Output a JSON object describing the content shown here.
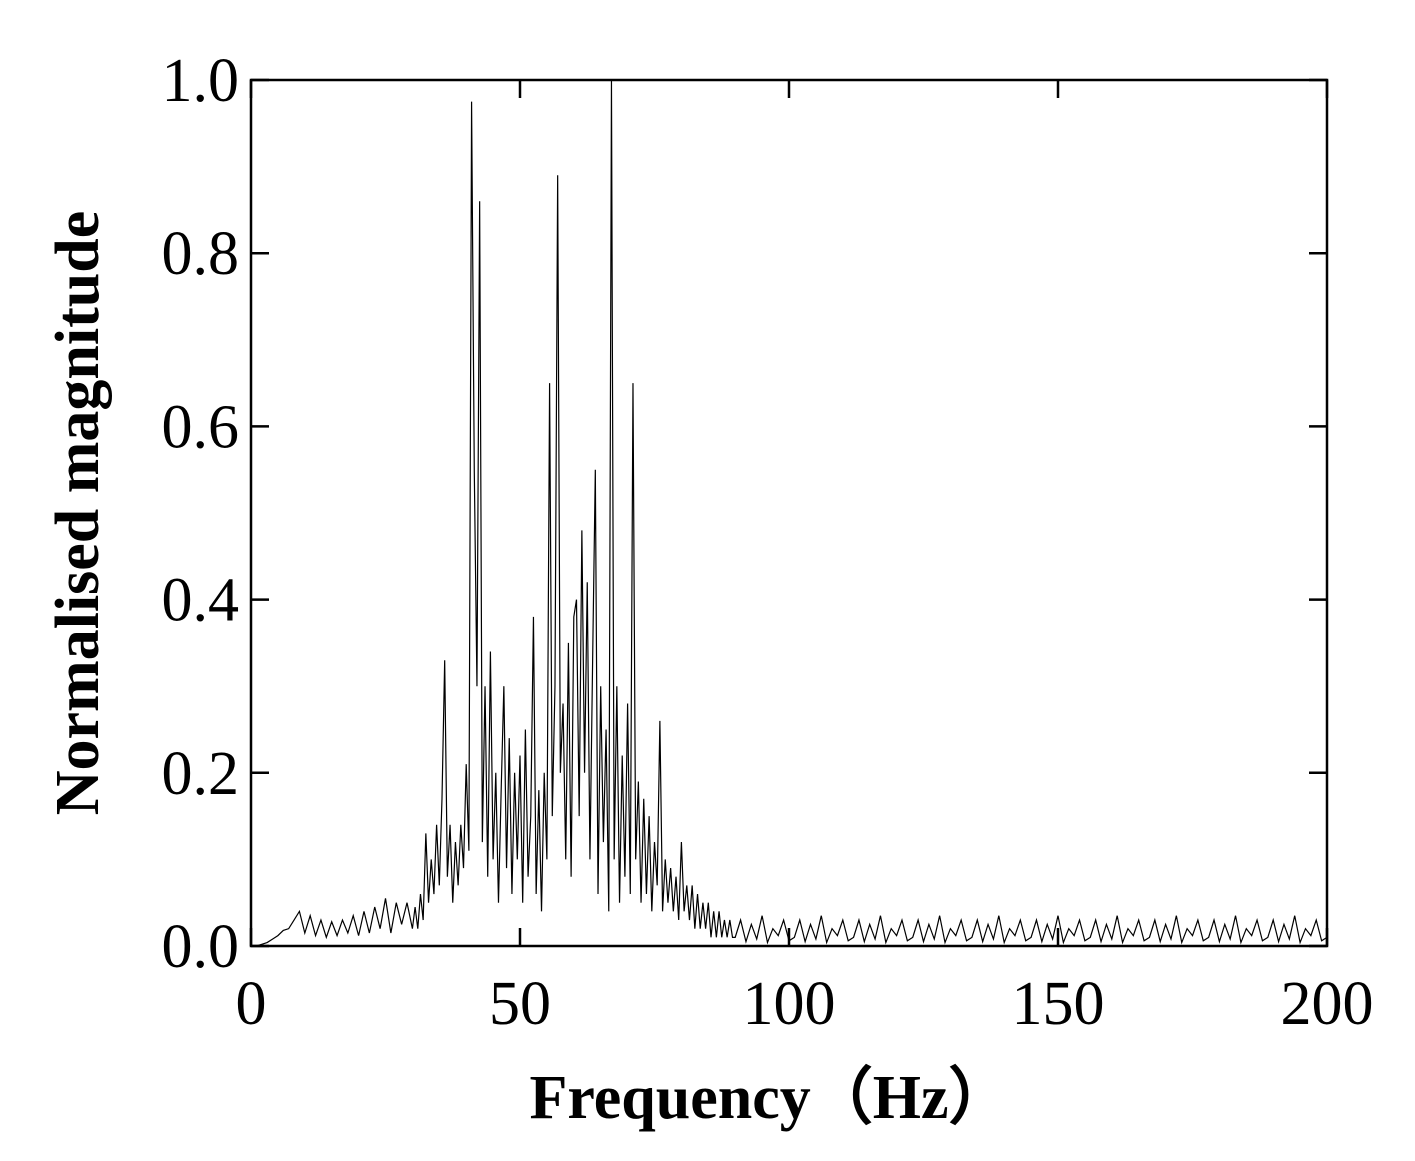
{
  "chart_data": {
    "type": "line",
    "x_label": "Frequency（Hz）",
    "y_label": "Normalised magnitude",
    "xlim": [
      0,
      200
    ],
    "xticks": [
      0,
      50,
      100,
      150,
      200
    ],
    "ylim": [
      0,
      1
    ],
    "yticks": [
      {
        "value": 0,
        "label": "0.0"
      },
      {
        "value": 0.2,
        "label": "0.2"
      },
      {
        "value": 0.4,
        "label": "0.4"
      },
      {
        "value": 0.6,
        "label": "0.6"
      },
      {
        "value": 0.8,
        "label": "0.8"
      },
      {
        "value": 1,
        "label": "1.0"
      }
    ],
    "grid": false,
    "series": [
      {
        "color": "#000000",
        "x": [
          0,
          1,
          2,
          3,
          4,
          5,
          6,
          7,
          8,
          9,
          10,
          11,
          12,
          13,
          14,
          15,
          16,
          17,
          18,
          19,
          20,
          21,
          22,
          23,
          24,
          25,
          26,
          27,
          28,
          29,
          30,
          30.5,
          31,
          31.5,
          32,
          32.5,
          33,
          33.5,
          34,
          34.5,
          35,
          35.5,
          36,
          36.5,
          37,
          37.5,
          38,
          38.5,
          39,
          39.5,
          40,
          40.5,
          41,
          41.5,
          42,
          42.5,
          43,
          43.5,
          44,
          44.5,
          45,
          45.5,
          46,
          46.5,
          47,
          47.5,
          48,
          48.5,
          49,
          49.5,
          50,
          50.5,
          51,
          51.5,
          52,
          52.5,
          53,
          53.5,
          54,
          54.5,
          55,
          55.5,
          56,
          56.5,
          57,
          57.5,
          58,
          58.5,
          59,
          59.5,
          60,
          60.5,
          61,
          61.5,
          62,
          62.5,
          63,
          63.5,
          64,
          64.5,
          65,
          65.5,
          66,
          66.5,
          67,
          67.5,
          68,
          68.5,
          69,
          69.5,
          70,
          70.5,
          71,
          71.5,
          72,
          72.5,
          73,
          73.5,
          74,
          74.5,
          75,
          75.5,
          76,
          76.5,
          77,
          77.5,
          78,
          78.5,
          79,
          79.5,
          80,
          80.5,
          81,
          81.5,
          82,
          82.5,
          83,
          83.5,
          84,
          84.5,
          85,
          85.5,
          86,
          86.5,
          87,
          87.5,
          88,
          88.5,
          89,
          89.5,
          90,
          91,
          92,
          93,
          94,
          95,
          96,
          97,
          98,
          99,
          100,
          101,
          102,
          103,
          104,
          105,
          106,
          107,
          108,
          109,
          110,
          111,
          112,
          113,
          114,
          115,
          116,
          117,
          118,
          119,
          120,
          121,
          122,
          123,
          124,
          125,
          126,
          127,
          128,
          129,
          130,
          131,
          132,
          133,
          134,
          135,
          136,
          137,
          138,
          139,
          140,
          141,
          142,
          143,
          144,
          145,
          146,
          147,
          148,
          149,
          150,
          151,
          152,
          153,
          154,
          155,
          156,
          157,
          158,
          159,
          160,
          161,
          162,
          163,
          164,
          165,
          166,
          167,
          168,
          169,
          170,
          171,
          172,
          173,
          174,
          175,
          176,
          177,
          178,
          179,
          180,
          181,
          182,
          183,
          184,
          185,
          186,
          187,
          188,
          189,
          190,
          191,
          192,
          193,
          194,
          195,
          196,
          197,
          198,
          199,
          200
        ],
        "values": [
          0,
          0,
          0.002,
          0.004,
          0.008,
          0.012,
          0.018,
          0.02,
          0.03,
          0.04,
          0.015,
          0.035,
          0.012,
          0.03,
          0.01,
          0.028,
          0.012,
          0.03,
          0.015,
          0.035,
          0.012,
          0.04,
          0.015,
          0.045,
          0.02,
          0.055,
          0.015,
          0.05,
          0.025,
          0.05,
          0.02,
          0.045,
          0.02,
          0.06,
          0.03,
          0.13,
          0.05,
          0.1,
          0.06,
          0.14,
          0.07,
          0.17,
          0.33,
          0.08,
          0.14,
          0.05,
          0.12,
          0.07,
          0.14,
          0.09,
          0.21,
          0.11,
          0.975,
          0.55,
          0.3,
          0.86,
          0.12,
          0.3,
          0.08,
          0.34,
          0.1,
          0.2,
          0.05,
          0.18,
          0.3,
          0.09,
          0.24,
          0.06,
          0.2,
          0.1,
          0.22,
          0.05,
          0.25,
          0.08,
          0.15,
          0.38,
          0.06,
          0.18,
          0.04,
          0.2,
          0.1,
          0.65,
          0.15,
          0.3,
          0.89,
          0.2,
          0.28,
          0.1,
          0.35,
          0.08,
          0.38,
          0.4,
          0.15,
          0.48,
          0.2,
          0.42,
          0.1,
          0.33,
          0.55,
          0.06,
          0.3,
          0.12,
          0.25,
          0.04,
          1.0,
          0.1,
          0.3,
          0.05,
          0.22,
          0.08,
          0.28,
          0.06,
          0.65,
          0.1,
          0.19,
          0.05,
          0.17,
          0.06,
          0.15,
          0.04,
          0.12,
          0.07,
          0.26,
          0.04,
          0.1,
          0.05,
          0.09,
          0.04,
          0.08,
          0.03,
          0.12,
          0.04,
          0.07,
          0.03,
          0.07,
          0.02,
          0.06,
          0.02,
          0.05,
          0.02,
          0.05,
          0.01,
          0.04,
          0.01,
          0.04,
          0.01,
          0.03,
          0.01,
          0.03,
          0.01,
          0.01,
          0.03,
          0.005,
          0.025,
          0.008,
          0.035,
          0.004,
          0.02,
          0.012,
          0.03,
          0.006,
          0.01,
          0.03,
          0.005,
          0.025,
          0.008,
          0.035,
          0.004,
          0.02,
          0.012,
          0.03,
          0.006,
          0.01,
          0.03,
          0.005,
          0.025,
          0.008,
          0.035,
          0.004,
          0.02,
          0.012,
          0.03,
          0.006,
          0.01,
          0.03,
          0.005,
          0.025,
          0.008,
          0.035,
          0.004,
          0.02,
          0.012,
          0.03,
          0.006,
          0.01,
          0.03,
          0.005,
          0.025,
          0.008,
          0.035,
          0.004,
          0.02,
          0.012,
          0.03,
          0.006,
          0.01,
          0.03,
          0.005,
          0.025,
          0.008,
          0.035,
          0.004,
          0.02,
          0.012,
          0.03,
          0.006,
          0.01,
          0.03,
          0.005,
          0.025,
          0.008,
          0.035,
          0.004,
          0.02,
          0.012,
          0.03,
          0.006,
          0.01,
          0.03,
          0.005,
          0.025,
          0.008,
          0.035,
          0.004,
          0.02,
          0.012,
          0.03,
          0.006,
          0.01,
          0.03,
          0.005,
          0.025,
          0.008,
          0.035,
          0.004,
          0.02,
          0.012,
          0.03,
          0.006,
          0.01,
          0.03,
          0.005,
          0.025,
          0.008,
          0.035,
          0.004,
          0.02,
          0.012,
          0.03,
          0.006,
          0.01
        ]
      }
    ]
  }
}
